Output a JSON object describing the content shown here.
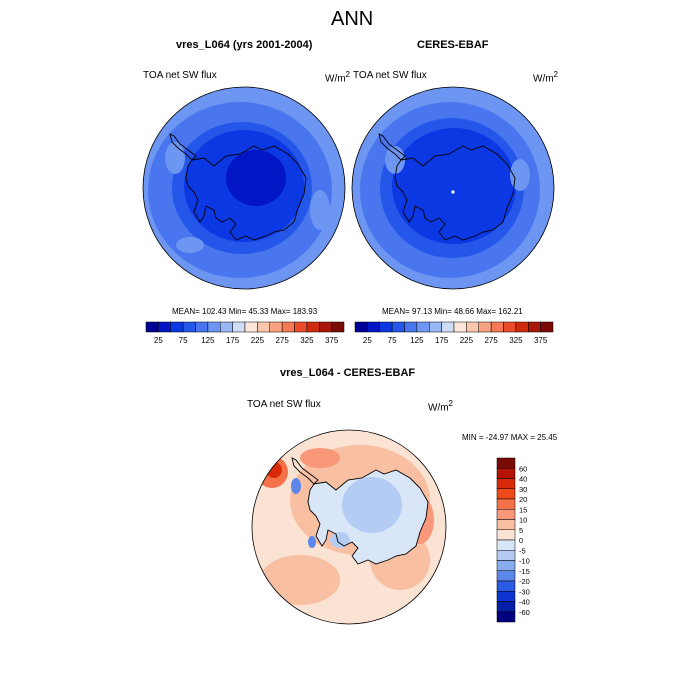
{
  "page": {
    "main_title": "ANN"
  },
  "chart_data": [
    {
      "type": "heatmap",
      "projection": "polar-stereographic-south",
      "title": "vres_L064 (yrs 2001-2004)",
      "left_label": "TOA net SW flux",
      "units_base": "W/m",
      "units_exp": "2",
      "stats": {
        "mean": 102.43,
        "min": 45.33,
        "max": 183.93,
        "text": "MEAN= 102.43  Min=  45.33  Max= 183.93"
      },
      "colorbar": {
        "levels": [
          25,
          50,
          75,
          100,
          125,
          150,
          175,
          200,
          225,
          250,
          275,
          300,
          325,
          350,
          375
        ],
        "tick_labels": [
          "25",
          "75",
          "125",
          "175",
          "225",
          "275",
          "325",
          "375"
        ],
        "colors": [
          "#000094",
          "#0216c6",
          "#0b38e3",
          "#2556ea",
          "#4976ef",
          "#6d96f2",
          "#98b7f5",
          "#cfdcf7",
          "#fbe6d9",
          "#fac7ad",
          "#f8a27f",
          "#f47a56",
          "#eb4d2c",
          "#cf2a0e",
          "#a8160a",
          "#7a0b04"
        ]
      },
      "field_description": "Values ~150-180 over ocean ring, ~100-125 mid, ~50-75 over Antarctic interior"
    },
    {
      "type": "heatmap",
      "projection": "polar-stereographic-south",
      "title": "CERES-EBAF",
      "left_label": "TOA net SW flux",
      "units_base": "W/m",
      "units_exp": "2",
      "stats": {
        "mean": 97.13,
        "min": 48.66,
        "max": 162.21,
        "text": "MEAN=  97.13  Min=  48.66  Max= 162.21"
      },
      "colorbar": {
        "levels": [
          25,
          50,
          75,
          100,
          125,
          150,
          175,
          200,
          225,
          250,
          275,
          300,
          325,
          350,
          375
        ],
        "tick_labels": [
          "25",
          "75",
          "125",
          "175",
          "225",
          "275",
          "325",
          "375"
        ],
        "colors": [
          "#000094",
          "#0216c6",
          "#0b38e3",
          "#2556ea",
          "#4976ef",
          "#6d96f2",
          "#98b7f5",
          "#cfdcf7",
          "#fbe6d9",
          "#fac7ad",
          "#f8a27f",
          "#f47a56",
          "#eb4d2c",
          "#cf2a0e",
          "#a8160a",
          "#7a0b04"
        ]
      }
    },
    {
      "type": "heatmap",
      "projection": "polar-stereographic-south",
      "title": "vres_L064 - CERES-EBAF",
      "left_label": "TOA net SW flux",
      "units_base": "W/m",
      "units_exp": "2",
      "stats": {
        "min": -24.97,
        "max": 25.45,
        "text": "MIN = -24.97 MAX =  25.45"
      },
      "colorbar": {
        "orientation": "vertical",
        "levels": [
          60,
          40,
          30,
          20,
          15,
          10,
          5,
          0,
          -5,
          -10,
          -15,
          -20,
          -30,
          -40,
          -60
        ],
        "tick_labels": [
          "60",
          "40",
          "30",
          "20",
          "15",
          "10",
          "5",
          "0",
          "-5",
          "-10",
          "-15",
          "-20",
          "-30",
          "-40",
          "-60"
        ],
        "colors": [
          "#7a0b04",
          "#b51306",
          "#d82a08",
          "#ee4a1c",
          "#f5714a",
          "#f89878",
          "#f9bfa3",
          "#fbe3d3",
          "#d9e6f8",
          "#b4cbf4",
          "#89abf0",
          "#5b86ea",
          "#2b5ae3",
          "#0c33cf",
          "#041ea6",
          "#000080"
        ]
      }
    }
  ]
}
